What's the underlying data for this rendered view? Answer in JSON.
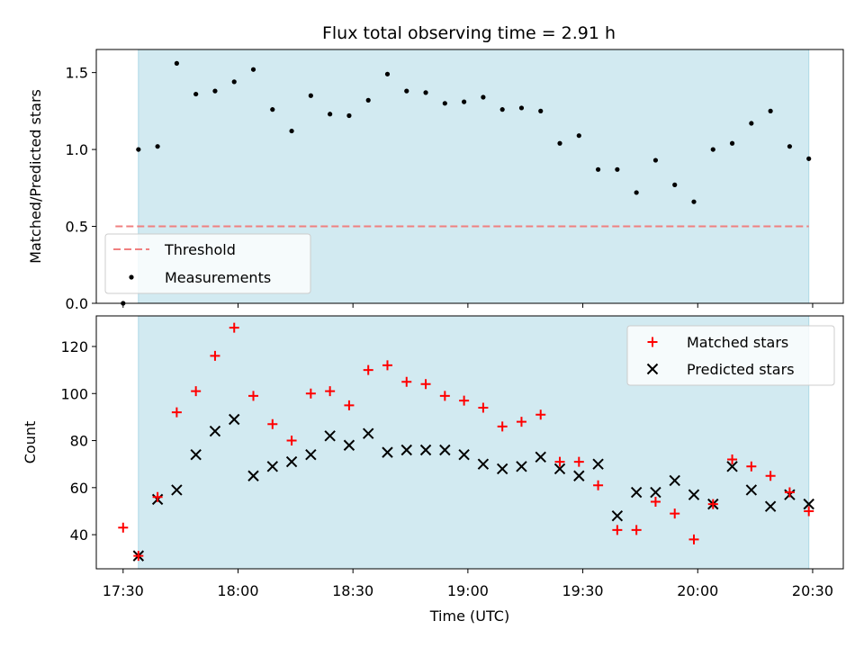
{
  "title": "Flux total observing time = 2.91 h",
  "colors": {
    "shade": "#add8e6",
    "threshold": "#f08080",
    "matched": "#ff0000",
    "predicted": "#000000",
    "measurement": "#000000"
  },
  "chart_data": [
    {
      "type": "scatter",
      "panel": "top",
      "ylabel": "Matched/Predicted stars",
      "ylim": [
        0,
        1.65
      ],
      "yticks": [
        0.0,
        0.5,
        1.0,
        1.5
      ],
      "ytick_labels": [
        "0.0",
        "0.5",
        "1.0",
        "1.5"
      ],
      "shaded_span_minutes": [
        17.55,
        20.48
      ],
      "threshold": {
        "name": "Threshold",
        "y": 0.5,
        "x_start": 17.47,
        "x_end": 20.48,
        "style": "dashed"
      },
      "series": [
        {
          "name": "Measurements",
          "marker": "dot",
          "x": [
            "17:30",
            "17:34",
            "17:39",
            "17:44",
            "17:49",
            "17:54",
            "17:59",
            "18:04",
            "18:09",
            "18:14",
            "18:19",
            "18:24",
            "18:29",
            "18:34",
            "18:39",
            "18:44",
            "18:49",
            "18:54",
            "18:59",
            "19:04",
            "19:09",
            "19:14",
            "19:19",
            "19:24",
            "19:29",
            "19:34",
            "19:39",
            "19:44",
            "19:49",
            "19:54",
            "19:59",
            "20:04",
            "20:09",
            "20:14",
            "20:19",
            "20:24",
            "20:29"
          ],
          "y": [
            0.0,
            1.0,
            1.02,
            1.56,
            1.36,
            1.38,
            1.44,
            1.52,
            1.26,
            1.12,
            1.35,
            1.23,
            1.22,
            1.32,
            1.49,
            1.38,
            1.37,
            1.3,
            1.31,
            1.34,
            1.26,
            1.27,
            1.25,
            1.04,
            1.09,
            0.87,
            0.87,
            0.72,
            0.93,
            0.77,
            0.66,
            1.0,
            1.04,
            1.17,
            1.25,
            1.02,
            0.94
          ]
        }
      ],
      "legend": {
        "position": "lower-left"
      }
    },
    {
      "type": "scatter",
      "panel": "bottom",
      "xlabel": "Time (UTC)",
      "ylabel": "Count",
      "ylim": [
        25.5,
        133
      ],
      "yticks": [
        40,
        60,
        80,
        100,
        120
      ],
      "xlim": [
        "17:23",
        "20:38"
      ],
      "xticks": [
        "17:30",
        "18:00",
        "18:30",
        "19:00",
        "19:30",
        "20:00",
        "20:30"
      ],
      "shaded_span": [
        "17:34",
        "20:29"
      ],
      "series": [
        {
          "name": "Matched stars",
          "marker": "plus",
          "x": [
            "17:30",
            "17:34",
            "17:39",
            "17:44",
            "17:49",
            "17:54",
            "17:59",
            "18:04",
            "18:09",
            "18:14",
            "18:19",
            "18:24",
            "18:29",
            "18:34",
            "18:39",
            "18:44",
            "18:49",
            "18:54",
            "18:59",
            "19:04",
            "19:09",
            "19:14",
            "19:19",
            "19:24",
            "19:29",
            "19:34",
            "19:39",
            "19:44",
            "19:49",
            "19:54",
            "19:59",
            "20:04",
            "20:09",
            "20:14",
            "20:19",
            "20:24",
            "20:29"
          ],
          "y": [
            43,
            31,
            56,
            92,
            101,
            116,
            128,
            99,
            87,
            80,
            100,
            101,
            95,
            110,
            112,
            105,
            104,
            99,
            97,
            94,
            86,
            88,
            91,
            71,
            71,
            61,
            42,
            42,
            54,
            49,
            38,
            53,
            72,
            69,
            65,
            58,
            50
          ]
        },
        {
          "name": "Predicted stars",
          "marker": "x",
          "x": [
            "17:34",
            "17:39",
            "17:44",
            "17:49",
            "17:54",
            "17:59",
            "18:04",
            "18:09",
            "18:14",
            "18:19",
            "18:24",
            "18:29",
            "18:34",
            "18:39",
            "18:44",
            "18:49",
            "18:54",
            "18:59",
            "19:04",
            "19:09",
            "19:14",
            "19:19",
            "19:24",
            "19:29",
            "19:34",
            "19:39",
            "19:44",
            "19:49",
            "19:54",
            "19:59",
            "20:04",
            "20:09",
            "20:14",
            "20:19",
            "20:24",
            "20:29"
          ],
          "y": [
            31,
            55,
            59,
            74,
            84,
            89,
            65,
            69,
            71,
            74,
            82,
            78,
            83,
            75,
            76,
            76,
            76,
            74,
            70,
            68,
            69,
            73,
            68,
            65,
            70,
            48,
            58,
            58,
            63,
            57,
            53,
            69,
            59,
            52,
            57,
            53
          ]
        }
      ],
      "legend": {
        "position": "upper-right"
      }
    }
  ]
}
